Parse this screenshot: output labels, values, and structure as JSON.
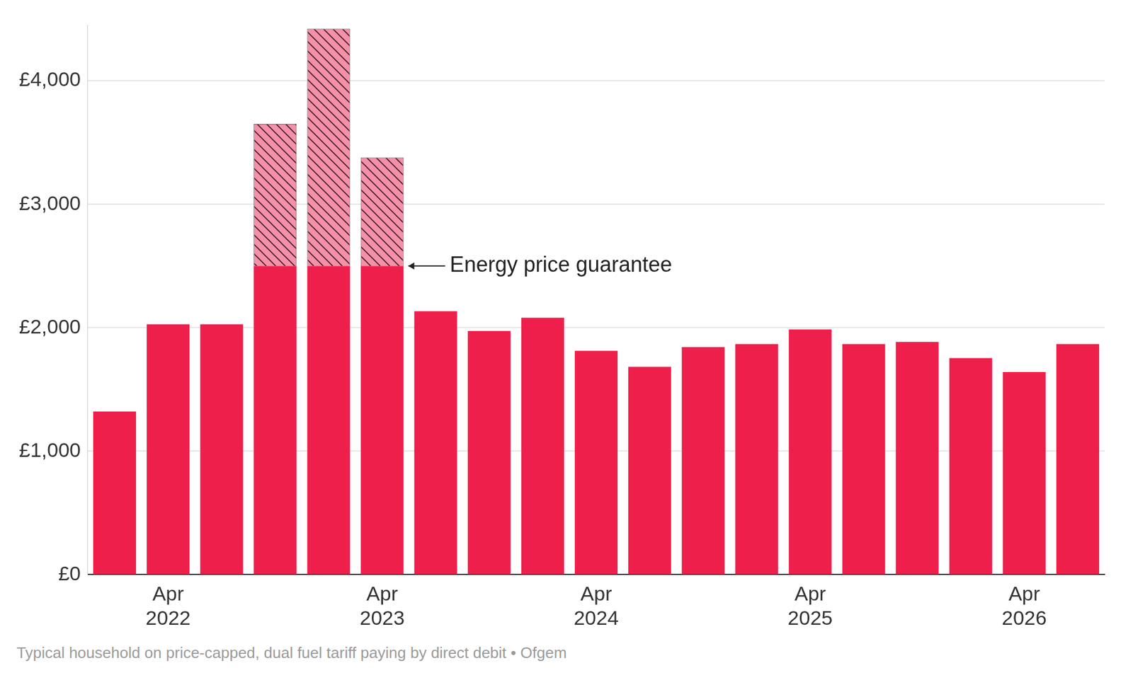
{
  "chart_data": {
    "type": "bar",
    "stacked": true,
    "categories": [
      null,
      "Apr 2022",
      null,
      null,
      null,
      "Apr 2023",
      null,
      null,
      null,
      "Apr 2024",
      null,
      null,
      null,
      "Apr 2025",
      null,
      null,
      null,
      "Apr 2026",
      null
    ],
    "series": [
      {
        "color": "#ee1f4b",
        "values": [
          1321,
          2027,
          2027,
          2500,
          2500,
          2500,
          2133,
          1973,
          2080,
          1813,
          1683,
          1843,
          1867,
          1985,
          1867,
          1884,
          1754,
          1641,
          1867
        ]
      },
      {
        "color": "#f490a8",
        "line_style": "hatched",
        "values": [
          null,
          null,
          null,
          1150,
          1921,
          878,
          null,
          null,
          null,
          null,
          null,
          null,
          null,
          null,
          null,
          null,
          null,
          null,
          null
        ]
      }
    ],
    "ylim": [
      0,
      4450
    ],
    "yticks": [
      {
        "value": 0,
        "label": "£0"
      },
      {
        "value": 1000,
        "label": "£1,000"
      },
      {
        "value": 2000,
        "label": "£2,000"
      },
      {
        "value": 3000,
        "label": "£3,000"
      },
      {
        "value": 4000,
        "label": "£4,000"
      }
    ],
    "grid": true,
    "annotations": [
      {
        "text": "Energy price guarantee",
        "y": 2500
      }
    ],
    "caption": "Typical household on price-capped, dual fuel tariff paying by direct debit • Ofgem"
  }
}
